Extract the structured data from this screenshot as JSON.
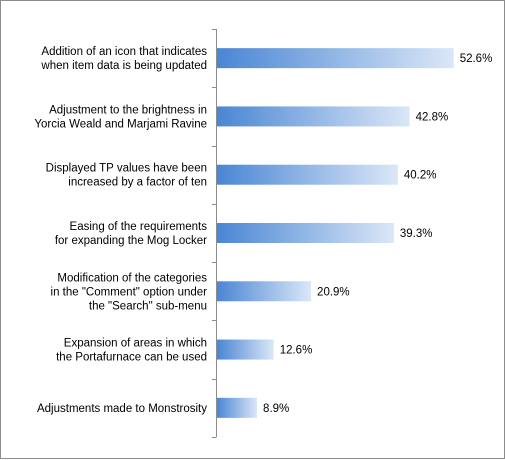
{
  "chart_data": {
    "type": "bar",
    "orientation": "horizontal",
    "categories": [
      [
        "Addition of an icon that indicates",
        "when item data is being updated"
      ],
      [
        "Adjustment to the brightness in",
        "Yorcia Weald and Marjami Ravine"
      ],
      [
        "Displayed TP values have been",
        "increased by a factor of ten"
      ],
      [
        "Easing of the requirements",
        "for expanding the Mog Locker"
      ],
      [
        "Modification of the categories",
        "in the \"Comment\" option under",
        "the \"Search\" sub-menu"
      ],
      [
        "Expansion of areas in which",
        "the Portafurnace can be used"
      ],
      [
        "Adjustments made to Monstrosity"
      ]
    ],
    "values": [
      52.6,
      42.8,
      40.2,
      39.3,
      20.9,
      12.6,
      8.9
    ],
    "value_labels": [
      "52.6%",
      "42.8%",
      "40.2%",
      "39.3%",
      "20.9%",
      "12.6%",
      "8.9%"
    ],
    "unit": "%",
    "xlim": [
      0,
      60
    ],
    "grid": false,
    "legend": "none",
    "colors": {
      "bar_start": "#4a86d4",
      "bar_end": "#dbe7f7",
      "axis": "#8c8c8c"
    }
  }
}
